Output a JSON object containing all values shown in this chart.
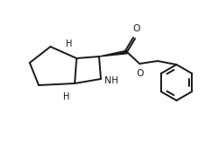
{
  "bg_color": "#ffffff",
  "line_color": "#1a1a1a",
  "bond_width": 1.4,
  "fig_width": 2.41,
  "fig_height": 1.65,
  "dpi": 100,
  "NH_text": "NH",
  "H_top_text": "H",
  "H_bot_text": "H",
  "O_carbonyl": "O",
  "O_ester": "O"
}
